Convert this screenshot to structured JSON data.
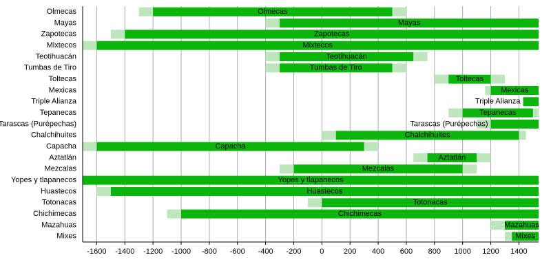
{
  "chart_data": {
    "type": "timeline",
    "categories": [
      "Olmecas",
      "Mayas",
      "Zapotecas",
      "Mixtecos",
      "Teotihuacán",
      "Tumbas de Tiro",
      "Toltecas",
      "Mexicas",
      "Triple Alianza",
      "Tepanecas",
      "Tarascas (Purépechas)",
      "Chalchihuites",
      "Capacha",
      "Aztatlán",
      "Mezcalas",
      "Yopes y tlapanecos",
      "Huastecos",
      "Totonacas",
      "Chichimecas",
      "Mazahuas",
      "Mixes"
    ],
    "outer_start": [
      -1300,
      -400,
      -1500,
      -1700,
      -400,
      -400,
      800,
      1160,
      null,
      900,
      1100,
      0,
      -1700,
      650,
      -300,
      null,
      -1600,
      -100,
      -1100,
      1200,
      1300
    ],
    "start": [
      -1200,
      -300,
      -1400,
      -1600,
      -300,
      -300,
      900,
      1200,
      1430,
      1000,
      1200,
      100,
      -1600,
      750,
      -200,
      -1700,
      -1500,
      0,
      -1000,
      1300,
      1350
    ],
    "end": [
      500,
      1540,
      1540,
      1540,
      650,
      500,
      1200,
      1540,
      1540,
      1500,
      1540,
      1400,
      300,
      1100,
      1000,
      1540,
      1540,
      1540,
      1540,
      1540,
      1540
    ],
    "outer_end": [
      600,
      null,
      null,
      null,
      750,
      600,
      1300,
      null,
      null,
      1540,
      null,
      1450,
      400,
      1200,
      1100,
      null,
      null,
      null,
      null,
      null,
      null
    ],
    "color": "#0bb50b",
    "uncertain_color": "#bde6bd",
    "xlim": [
      -1700,
      1540
    ],
    "xticks": [
      -1600,
      -1400,
      -1200,
      -1000,
      -800,
      -600,
      -400,
      -200,
      0,
      200,
      400,
      600,
      800,
      1000,
      1200,
      1400
    ],
    "grid": true
  }
}
